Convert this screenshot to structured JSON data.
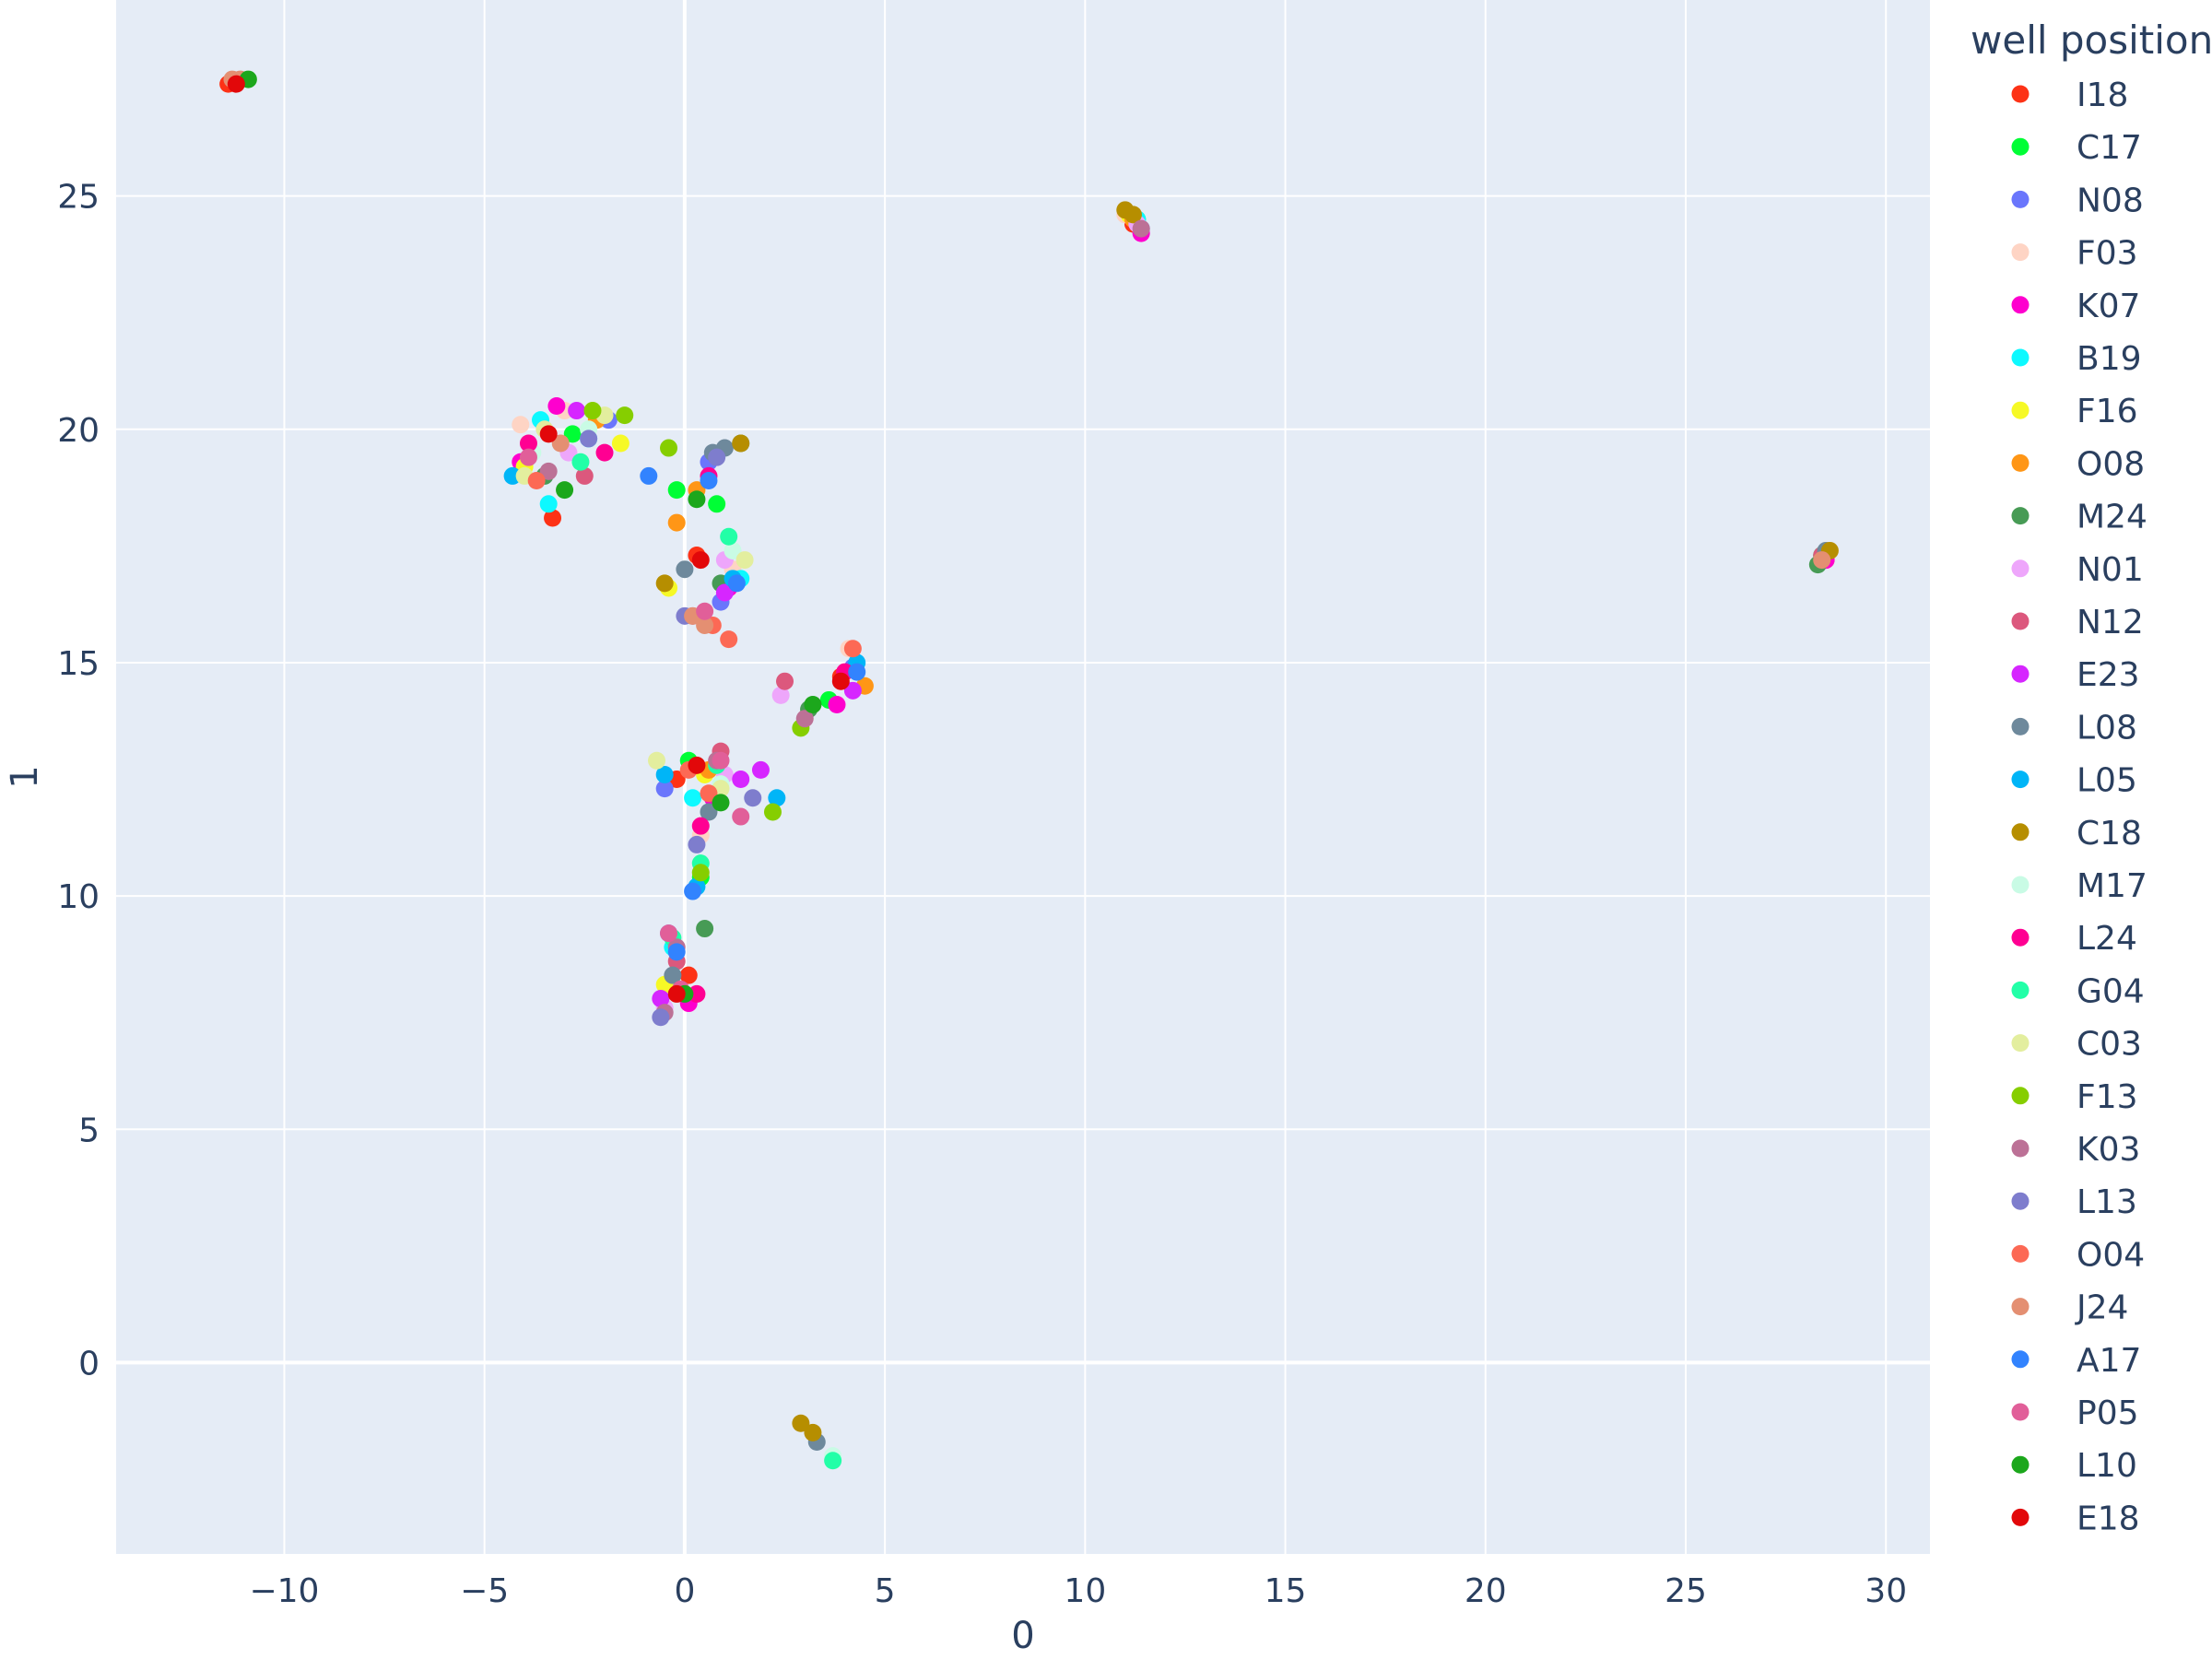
{
  "chart_data": {
    "type": "scatter",
    "xlabel": "0",
    "ylabel": "1",
    "xlim": [
      -14.2,
      31.1
    ],
    "ylim": [
      -4.1,
      29.2
    ],
    "x_ticks": [
      -10,
      -5,
      0,
      5,
      10,
      15,
      20,
      25,
      30
    ],
    "y_ticks": [
      0,
      5,
      10,
      15,
      20,
      25
    ],
    "x_tick_labels": [
      "−10",
      "−5",
      "0",
      "5",
      "10",
      "15",
      "20",
      "25",
      "30"
    ],
    "y_tick_labels": [
      "0",
      "5",
      "10",
      "15",
      "20",
      "25"
    ],
    "grid": true,
    "plot_background": "#e5ecf6",
    "legend": {
      "title": "well position",
      "placement": "right"
    },
    "series": [
      {
        "name": "I18",
        "color": "#fd3216",
        "points": [
          [
            -3.3,
            18.1
          ],
          [
            0.3,
            17.3
          ],
          [
            -0.2,
            12.5
          ],
          [
            3.9,
            14.7
          ],
          [
            11.2,
            24.4
          ],
          [
            28.5,
            17.2
          ],
          [
            -11.4,
            27.4
          ],
          [
            0.1,
            8.3
          ]
        ]
      },
      {
        "name": "C17",
        "color": "#00fe35",
        "points": [
          [
            -2.8,
            19.9
          ],
          [
            0.8,
            18.4
          ],
          [
            0.4,
            10.4
          ],
          [
            3.6,
            14.2
          ],
          [
            11.3,
            24.5
          ],
          [
            28.4,
            17.3
          ],
          [
            -0.2,
            18.7
          ],
          [
            0.1,
            12.9
          ]
        ]
      },
      {
        "name": "N08",
        "color": "#6a76fc",
        "points": [
          [
            -1.9,
            20.2
          ],
          [
            0.6,
            19.3
          ],
          [
            -0.4,
            9.2
          ],
          [
            4.2,
            14.9
          ],
          [
            11.4,
            24.3
          ],
          [
            28.5,
            17.3
          ],
          [
            0.9,
            16.3
          ],
          [
            -0.5,
            12.3
          ]
        ]
      },
      {
        "name": "F03",
        "color": "#fed4c4",
        "points": [
          [
            -4.1,
            20.1
          ],
          [
            0.4,
            11.3
          ],
          [
            4.1,
            15.3
          ],
          [
            11.0,
            24.6
          ],
          [
            28.6,
            17.4
          ],
          [
            -3.0,
            20.4
          ],
          [
            1.2,
            17.0
          ]
        ]
      },
      {
        "name": "K07",
        "color": "#fe00ce",
        "points": [
          [
            -3.2,
            20.5
          ],
          [
            1.1,
            16.6
          ],
          [
            0.7,
            12.1
          ],
          [
            3.8,
            14.1
          ],
          [
            11.4,
            24.2
          ],
          [
            28.5,
            17.2
          ],
          [
            -4.1,
            19.3
          ],
          [
            0.1,
            7.7
          ]
        ]
      },
      {
        "name": "B19",
        "color": "#0df9ff",
        "points": [
          [
            -3.6,
            20.2
          ],
          [
            -2.4,
            19.8
          ],
          [
            1.4,
            16.8
          ],
          [
            0.2,
            12.1
          ],
          [
            11.3,
            24.5
          ],
          [
            -3.4,
            18.4
          ],
          [
            -0.3,
            8.9
          ]
        ]
      },
      {
        "name": "F16",
        "color": "#f6f926",
        "points": [
          [
            -4.0,
            19.2
          ],
          [
            -1.6,
            19.7
          ],
          [
            -0.4,
            16.6
          ],
          [
            0.5,
            12.6
          ],
          [
            11.1,
            24.6
          ],
          [
            -0.5,
            8.1
          ]
        ]
      },
      {
        "name": "O08",
        "color": "#ff9616",
        "points": [
          [
            -2.2,
            20.2
          ],
          [
            0.3,
            18.7
          ],
          [
            -0.2,
            18.0
          ],
          [
            4.5,
            14.5
          ],
          [
            11.2,
            24.5
          ],
          [
            0.6,
            12.7
          ]
        ]
      },
      {
        "name": "M24",
        "color": "#479b55",
        "points": [
          [
            -3.5,
            19.0
          ],
          [
            1.4,
            19.7
          ],
          [
            0.9,
            16.7
          ],
          [
            0.5,
            9.3
          ],
          [
            28.3,
            17.1
          ],
          [
            3.1,
            14.0
          ]
        ]
      },
      {
        "name": "N01",
        "color": "#eea6fb",
        "points": [
          [
            -2.9,
            19.5
          ],
          [
            1.0,
            17.2
          ],
          [
            2.4,
            14.3
          ],
          [
            1.0,
            12.6
          ],
          [
            -0.5,
            7.6
          ],
          [
            11.3,
            24.4
          ]
        ]
      },
      {
        "name": "N12",
        "color": "#dc587d",
        "points": [
          [
            -2.5,
            19.0
          ],
          [
            0.9,
            13.1
          ],
          [
            2.5,
            14.6
          ],
          [
            -0.2,
            8.6
          ],
          [
            28.4,
            17.3
          ],
          [
            0.2,
            16.0
          ]
        ]
      },
      {
        "name": "E23",
        "color": "#d626ff",
        "points": [
          [
            -2.7,
            20.4
          ],
          [
            1.0,
            16.5
          ],
          [
            4.2,
            14.4
          ],
          [
            1.9,
            12.7
          ],
          [
            -0.6,
            7.8
          ],
          [
            1.4,
            12.5
          ]
        ]
      },
      {
        "name": "L08",
        "color": "#6e899c",
        "points": [
          [
            0.7,
            19.5
          ],
          [
            1.0,
            19.6
          ],
          [
            0.0,
            17.0
          ],
          [
            3.3,
            -1.7
          ],
          [
            0.6,
            11.8
          ],
          [
            -0.3,
            8.3
          ],
          [
            28.5,
            17.4
          ]
        ]
      },
      {
        "name": "L05",
        "color": "#00b5f7",
        "points": [
          [
            -4.3,
            19.0
          ],
          [
            1.2,
            16.8
          ],
          [
            4.3,
            15.0
          ],
          [
            0.3,
            10.2
          ],
          [
            -0.5,
            12.6
          ],
          [
            2.3,
            12.1
          ]
        ]
      },
      {
        "name": "C18",
        "color": "#b68e00",
        "points": [
          [
            11.0,
            24.7
          ],
          [
            11.2,
            24.6
          ],
          [
            2.9,
            -1.3
          ],
          [
            3.2,
            -1.5
          ],
          [
            1.4,
            19.7
          ],
          [
            -0.5,
            16.7
          ],
          [
            28.6,
            17.4
          ]
        ]
      },
      {
        "name": "M17",
        "color": "#c9fbe5",
        "points": [
          [
            -3.8,
            19.5
          ],
          [
            1.2,
            17.4
          ],
          [
            0.9,
            12.4
          ],
          [
            3.7,
            -2.0
          ],
          [
            -2.4,
            20.0
          ]
        ]
      },
      {
        "name": "L24",
        "color": "#ff0092",
        "points": [
          [
            -2.0,
            19.5
          ],
          [
            0.6,
            19.0
          ],
          [
            0.4,
            11.5
          ],
          [
            4.0,
            14.8
          ],
          [
            -3.9,
            19.7
          ],
          [
            0.3,
            7.9
          ]
        ]
      },
      {
        "name": "G04",
        "color": "#22ffa7",
        "points": [
          [
            -2.6,
            19.3
          ],
          [
            1.1,
            17.7
          ],
          [
            3.7,
            -2.1
          ],
          [
            0.4,
            10.7
          ],
          [
            -0.3,
            9.1
          ],
          [
            0.8,
            12.8
          ]
        ]
      },
      {
        "name": "C03",
        "color": "#e3ee9e",
        "points": [
          [
            -4.0,
            19.0
          ],
          [
            -3.5,
            20.0
          ],
          [
            1.5,
            17.2
          ],
          [
            0.9,
            12.3
          ],
          [
            -0.7,
            12.9
          ],
          [
            -2.0,
            20.3
          ]
        ]
      },
      {
        "name": "F13",
        "color": "#86ce00",
        "points": [
          [
            -2.3,
            20.4
          ],
          [
            -0.4,
            19.6
          ],
          [
            2.9,
            13.6
          ],
          [
            2.2,
            11.8
          ],
          [
            0.4,
            10.5
          ],
          [
            -1.5,
            20.3
          ]
        ]
      },
      {
        "name": "K03",
        "color": "#bc7196",
        "points": [
          [
            -3.4,
            19.1
          ],
          [
            0.8,
            12.9
          ],
          [
            -0.2,
            8.9
          ],
          [
            3.0,
            13.8
          ],
          [
            11.4,
            24.3
          ],
          [
            -0.5,
            7.5
          ]
        ]
      },
      {
        "name": "L13",
        "color": "#7e7dcd",
        "points": [
          [
            -2.4,
            19.8
          ],
          [
            0.8,
            19.4
          ],
          [
            1.7,
            12.1
          ],
          [
            0.0,
            16.0
          ],
          [
            -0.6,
            7.4
          ],
          [
            0.3,
            11.1
          ]
        ]
      },
      {
        "name": "O04",
        "color": "#fc6955",
        "points": [
          [
            -3.7,
            18.9
          ],
          [
            0.7,
            15.8
          ],
          [
            1.1,
            15.5
          ],
          [
            4.2,
            15.3
          ],
          [
            0.1,
            12.7
          ],
          [
            0.6,
            12.2
          ]
        ]
      },
      {
        "name": "J24",
        "color": "#e48f72",
        "points": [
          [
            -11.3,
            27.5
          ],
          [
            -11.1,
            27.5
          ],
          [
            0.2,
            16.0
          ],
          [
            0.5,
            15.8
          ],
          [
            -3.1,
            19.7
          ],
          [
            28.4,
            17.2
          ]
        ]
      },
      {
        "name": "A17",
        "color": "#3283fe",
        "points": [
          [
            -0.9,
            19.0
          ],
          [
            0.6,
            18.9
          ],
          [
            4.3,
            14.8
          ],
          [
            0.2,
            10.1
          ],
          [
            -0.2,
            8.8
          ],
          [
            1.3,
            16.7
          ]
        ]
      },
      {
        "name": "P05",
        "color": "#e15f99",
        "points": [
          [
            -3.9,
            19.4
          ],
          [
            0.5,
            16.1
          ],
          [
            0.9,
            12.9
          ],
          [
            1.4,
            11.7
          ],
          [
            -0.4,
            9.2
          ],
          [
            -0.1,
            8.0
          ]
        ]
      },
      {
        "name": "L10",
        "color": "#1ca71c",
        "points": [
          [
            -3.0,
            18.7
          ],
          [
            0.3,
            18.5
          ],
          [
            0.9,
            12.0
          ],
          [
            3.2,
            14.1
          ],
          [
            -10.9,
            27.5
          ],
          [
            0.0,
            7.9
          ]
        ]
      },
      {
        "name": "E18",
        "color": "#e2080a",
        "points": [
          [
            -3.4,
            19.9
          ],
          [
            0.4,
            17.2
          ],
          [
            0.3,
            12.8
          ],
          [
            3.9,
            14.6
          ],
          [
            -0.2,
            7.9
          ],
          [
            -11.2,
            27.4
          ]
        ]
      }
    ]
  }
}
